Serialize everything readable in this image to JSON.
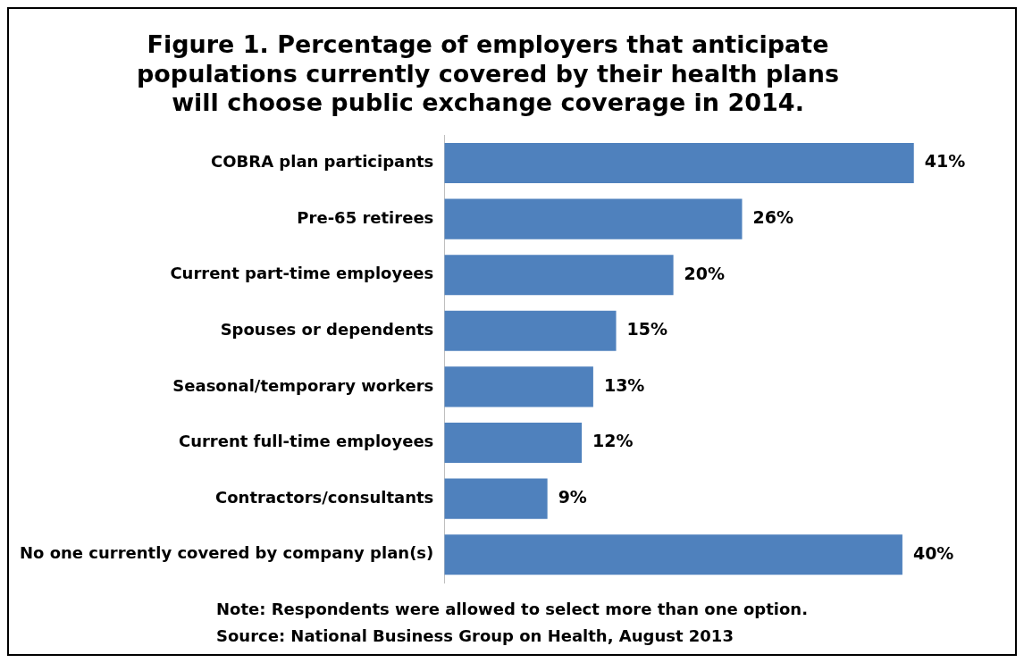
{
  "chart_data": {
    "type": "bar",
    "orientation": "horizontal",
    "title": "Figure 1. Percentage of employers that anticipate populations currently covered by their health plans will choose public exchange coverage in 2014.",
    "categories": [
      "COBRA plan participants",
      "Pre-65 retirees",
      "Current part-time employees",
      "Spouses or dependents",
      "Seasonal/temporary workers",
      "Current full-time employees",
      "Contractors/consultants",
      "No one currently covered by company plan(s)"
    ],
    "values": [
      41,
      26,
      20,
      15,
      13,
      12,
      9,
      40
    ],
    "value_labels": [
      "41%",
      "26%",
      "20%",
      "15%",
      "13%",
      "12%",
      "9%",
      "40%"
    ],
    "color": "#4f81bd",
    "grid": false,
    "legend": false,
    "tick_labels": "y",
    "annotations": [
      "Note: Respondents were allowed to select more than one option.",
      "Source: National Business Group on Health, August 2013"
    ]
  }
}
